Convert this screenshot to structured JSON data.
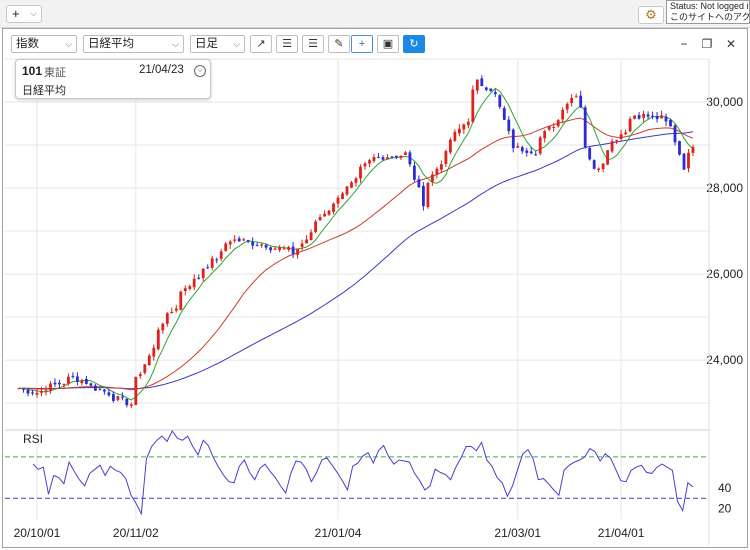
{
  "topbar": {
    "add_label": "+",
    "status_line1": "Status: Not logged in",
    "status_line2": "このサイトへのアクセスが"
  },
  "toolbar": {
    "dropdown_type": "指数",
    "dropdown_symbol": "日経平均",
    "dropdown_period": "日足"
  },
  "info": {
    "code": "101",
    "exchange": "東証",
    "date": "21/04/23",
    "name": "日経平均"
  },
  "chart_data": [
    {
      "type": "candlestick",
      "title": "",
      "series": [
        {
          "name": "日経平均",
          "color_up": "#e0201a",
          "color_down": "#2a2ad8"
        },
        {
          "name": "",
          "kind": "moving-average",
          "color": "#2fa52f"
        },
        {
          "name": "",
          "kind": "moving-average",
          "color": "#d23a2a"
        },
        {
          "name": "",
          "kind": "moving-average",
          "color": "#3a3ac8"
        }
      ],
      "ylim": [
        22400,
        31000
      ],
      "y_ticks": [
        24000,
        26000,
        28000,
        30000
      ],
      "y_tick_labels": [
        "24,000",
        "26,000",
        "28,000",
        "30,000"
      ],
      "x_ticks": [
        "2020-10-01",
        "2020-11-02",
        "2021-01-04",
        "2021-03-01",
        "2021-04-01"
      ],
      "x_tick_labels": [
        "20/10/01",
        "20/11/02",
        "21/01/04",
        "21/03/01",
        "21/04/01"
      ],
      "grid": true,
      "anchors": [
        {
          "date": "2020-09-25",
          "close": 23350
        },
        {
          "date": "2020-10-01",
          "close": 23250
        },
        {
          "date": "2020-10-13",
          "close": 23600
        },
        {
          "date": "2020-10-30",
          "close": 22980
        },
        {
          "date": "2020-11-05",
          "close": 24100
        },
        {
          "date": "2020-11-10",
          "close": 24900
        },
        {
          "date": "2020-11-17",
          "close": 25700
        },
        {
          "date": "2020-11-25",
          "close": 26300
        },
        {
          "date": "2020-12-01",
          "close": 26800
        },
        {
          "date": "2020-12-10",
          "close": 26700
        },
        {
          "date": "2020-12-21",
          "close": 26500
        },
        {
          "date": "2020-12-30",
          "close": 27440
        },
        {
          "date": "2021-01-08",
          "close": 28150
        },
        {
          "date": "2021-01-14",
          "close": 28700
        },
        {
          "date": "2021-01-25",
          "close": 28800
        },
        {
          "date": "2021-01-29",
          "close": 27660
        },
        {
          "date": "2021-02-05",
          "close": 28780
        },
        {
          "date": "2021-02-12",
          "close": 29600
        },
        {
          "date": "2021-02-16",
          "close": 30460
        },
        {
          "date": "2021-02-22",
          "close": 30150
        },
        {
          "date": "2021-02-26",
          "close": 28970
        },
        {
          "date": "2021-03-05",
          "close": 28860
        },
        {
          "date": "2021-03-18",
          "close": 30200
        },
        {
          "date": "2021-03-24",
          "close": 28400
        },
        {
          "date": "2021-03-31",
          "close": 29180
        },
        {
          "date": "2021-04-06",
          "close": 29700
        },
        {
          "date": "2021-04-14",
          "close": 29620
        },
        {
          "date": "2021-04-19",
          "close": 29100
        },
        {
          "date": "2021-04-21",
          "close": 28500
        },
        {
          "date": "2021-04-23",
          "close": 29020
        }
      ]
    },
    {
      "type": "line",
      "title": "RSI",
      "series": [
        {
          "name": "",
          "color": "#4a3fd0"
        }
      ],
      "ylim": [
        10,
        95
      ],
      "y_ticks": [
        20,
        40
      ],
      "y_tick_labels": [
        "20",
        "40"
      ],
      "reference_lines": [
        {
          "value": 70,
          "color": "#3cb043"
        },
        {
          "value": 30,
          "color": "#3a3ad8"
        }
      ],
      "values": [
        63,
        58,
        60,
        34,
        52,
        50,
        44,
        65,
        56,
        48,
        42,
        54,
        58,
        62,
        52,
        61,
        57,
        55,
        49,
        33,
        25,
        15,
        68,
        80,
        86,
        90,
        85,
        95,
        88,
        86,
        90,
        80,
        72,
        86,
        81,
        69,
        60,
        52,
        46,
        45,
        61,
        67,
        55,
        48,
        59,
        63,
        56,
        50,
        42,
        35,
        54,
        66,
        65,
        58,
        46,
        55,
        67,
        69,
        62,
        55,
        47,
        38,
        61,
        64,
        71,
        74,
        64,
        76,
        81,
        70,
        63,
        67,
        66,
        65,
        54,
        47,
        38,
        42,
        58,
        55,
        53,
        48,
        60,
        69,
        80,
        80,
        76,
        84,
        67,
        61,
        50,
        45,
        32,
        42,
        58,
        73,
        77,
        68,
        48,
        49,
        44,
        38,
        33,
        57,
        62,
        65,
        67,
        70,
        78,
        75,
        66,
        73,
        69,
        58,
        47,
        46,
        57,
        60,
        62,
        55,
        54,
        60,
        63,
        60,
        57,
        27,
        18,
        45,
        41
      ]
    }
  ]
}
